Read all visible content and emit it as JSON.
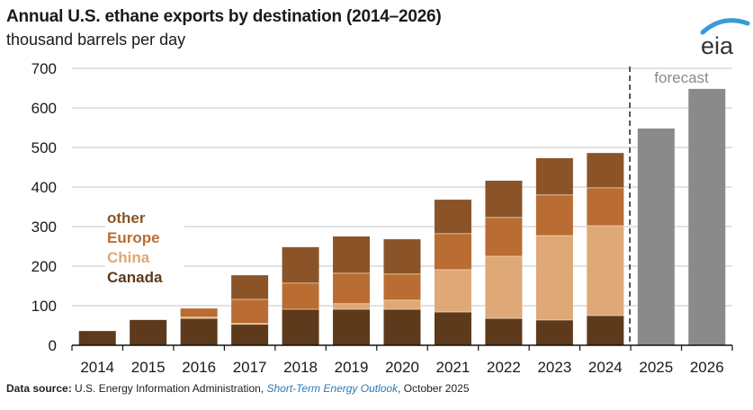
{
  "header": {
    "title": "Annual U.S. ethane exports by destination (2014–2026)",
    "subtitle": "thousand barrels per day",
    "logo_text": "eia"
  },
  "footer": {
    "source_label": "Data source:",
    "source_org": "U.S. Energy Information Administration,",
    "source_pub": "Short-Term Energy Outlook",
    "source_date": ", October 2025"
  },
  "colors": {
    "Canada": "#5c3a1b",
    "China": "#dea877",
    "Europe": "#b96d33",
    "other": "#8a5428",
    "forecast": "#8a8a8a"
  },
  "chart_data": {
    "type": "bar",
    "stacked": true,
    "title": "Annual U.S. ethane exports by destination (2014–2026)",
    "ylabel": "thousand barrels per day",
    "xlabel": "",
    "ylim": [
      0,
      700
    ],
    "yticks": [
      0,
      100,
      200,
      300,
      400,
      500,
      600,
      700
    ],
    "grid": true,
    "legend": [
      "other",
      "Europe",
      "China",
      "Canada"
    ],
    "legend_position": "left, inside plot",
    "categories": [
      "2014",
      "2015",
      "2016",
      "2017",
      "2018",
      "2019",
      "2020",
      "2021",
      "2022",
      "2023",
      "2024",
      "2025",
      "2026"
    ],
    "series": [
      {
        "name": "Canada",
        "values": [
          36,
          64,
          68,
          53,
          91,
          91,
          91,
          84,
          68,
          64,
          75,
          null,
          null
        ]
      },
      {
        "name": "China",
        "values": [
          0,
          0,
          3,
          2,
          0,
          14,
          23,
          107,
          157,
          213,
          227,
          null,
          null
        ]
      },
      {
        "name": "Europe",
        "values": [
          0,
          0,
          22,
          61,
          66,
          77,
          66,
          91,
          98,
          103,
          96,
          null,
          null
        ]
      },
      {
        "name": "other",
        "values": [
          0,
          0,
          0,
          61,
          91,
          93,
          88,
          86,
          93,
          93,
          88,
          null,
          null
        ]
      },
      {
        "name": "forecast total",
        "values": [
          null,
          null,
          null,
          null,
          null,
          null,
          null,
          null,
          null,
          null,
          null,
          548,
          648
        ]
      }
    ],
    "annotations": [
      {
        "text": "forecast",
        "region": "2025–2026"
      }
    ],
    "forecast_divider_after": "2024"
  }
}
